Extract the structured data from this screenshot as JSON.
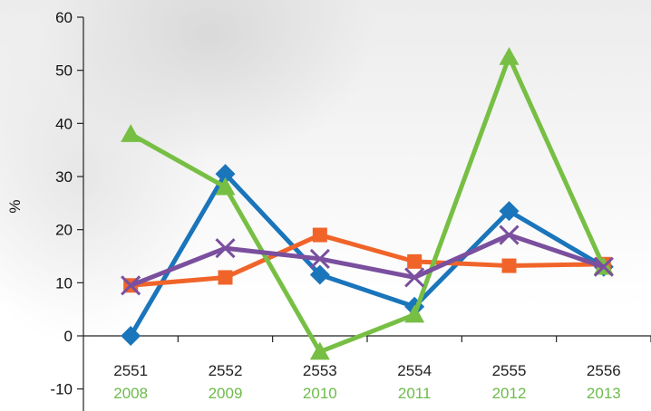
{
  "chart_data": {
    "type": "line",
    "categories_th": [
      "2551",
      "2552",
      "2553",
      "2554",
      "2555",
      "2556"
    ],
    "categories_en": [
      "2008",
      "2009",
      "2010",
      "2011",
      "2012",
      "2013"
    ],
    "ylabel": "%",
    "ylim": [
      -10,
      60
    ],
    "yticks": [
      -10,
      0,
      10,
      20,
      30,
      40,
      50,
      60
    ],
    "grid": false,
    "colors": {
      "blue": "#1a75bb",
      "orange": "#f0642a",
      "green": "#77bf44",
      "purple": "#7a4f9e",
      "en_label": "#6dbb4b"
    },
    "series": [
      {
        "color": "#1a75bb",
        "marker": "diamond",
        "values": [
          0,
          30.5,
          11.5,
          5.5,
          23.5,
          13
        ]
      },
      {
        "color": "#f0642a",
        "marker": "square",
        "values": [
          9.5,
          11,
          19,
          14,
          13.2,
          13.5
        ]
      },
      {
        "color": "#77bf44",
        "marker": "triangle",
        "values": [
          38,
          28,
          -3,
          4,
          52.5,
          13
        ]
      },
      {
        "color": "#7a4f9e",
        "marker": "x",
        "values": [
          9.5,
          16.5,
          14.5,
          11,
          19,
          13
        ]
      }
    ]
  }
}
